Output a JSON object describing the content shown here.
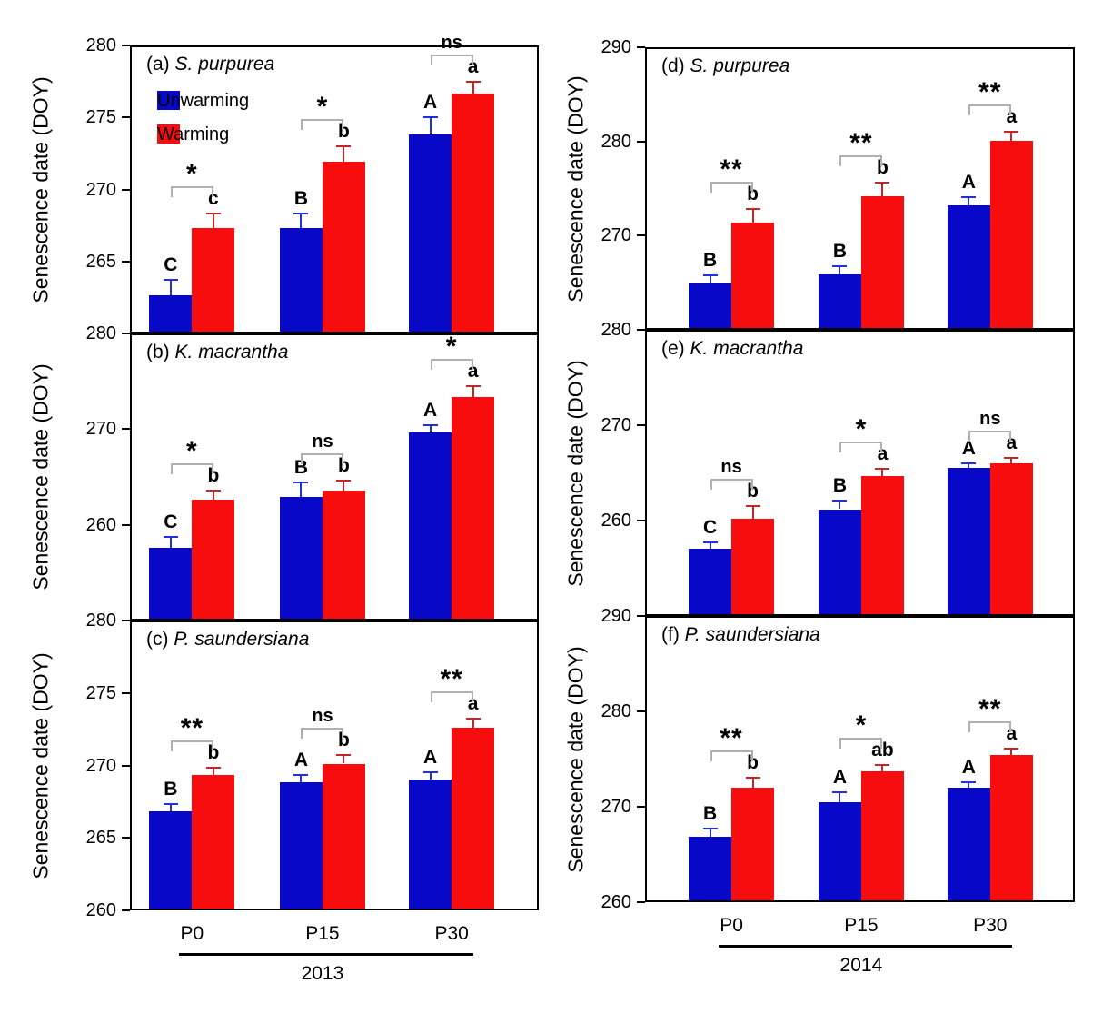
{
  "figure": {
    "background": "#ffffff",
    "ylabel": "Senescence date (DOY)",
    "legend": [
      {
        "label": "Unwarming",
        "color": "#0808C8"
      },
      {
        "label": "Warming",
        "color": "#F70D0D"
      }
    ],
    "colors": {
      "unwarming_bar": "#0808C8",
      "warming_bar": "#F70D0D",
      "unwarming_error": "#2030E0",
      "warming_error": "#C42525",
      "bracket": "#B0B0B0",
      "text": "#000000"
    },
    "x_categories": [
      "P0",
      "P15",
      "P30"
    ],
    "columns": [
      {
        "year": "2013",
        "panel_ids": [
          "a",
          "b",
          "c"
        ]
      },
      {
        "year": "2014",
        "panel_ids": [
          "d",
          "e",
          "f"
        ]
      }
    ]
  },
  "chart_data": [
    {
      "id": "a",
      "type": "bar",
      "title_prefix": "(a)",
      "species": "S. purpurea",
      "year": "2013",
      "ylabel": "Senescence date (DOY)",
      "ylim": [
        260,
        280
      ],
      "yticks": [
        {
          "v": 280,
          "label": "280"
        },
        {
          "v": 275,
          "label": "275"
        },
        {
          "v": 270,
          "label": "270"
        },
        {
          "v": 265,
          "label": "265"
        },
        {
          "v": 260,
          "label": ""
        }
      ],
      "categories": [
        "P0",
        "P15",
        "P30"
      ],
      "series": [
        {
          "name": "Unwarming",
          "values": [
            262.5,
            267.2,
            273.7
          ],
          "errors": [
            1.1,
            1.0,
            1.2
          ],
          "letters": [
            "C",
            "B",
            "A"
          ]
        },
        {
          "name": "Warming",
          "values": [
            267.2,
            271.8,
            276.5
          ],
          "errors": [
            1.0,
            1.1,
            0.85
          ],
          "letters": [
            "c",
            "b",
            "a"
          ]
        }
      ],
      "significance": [
        "*",
        "*",
        "ns"
      ],
      "show_legend": true
    },
    {
      "id": "b",
      "type": "bar",
      "title_prefix": "(b)",
      "species": "K. macrantha",
      "year": "2013",
      "ylabel": "Senescence date (DOY)",
      "ylim": [
        250,
        280
      ],
      "yticks": [
        {
          "v": 280,
          "label": "280"
        },
        {
          "v": 270,
          "label": "270"
        },
        {
          "v": 260,
          "label": "260"
        },
        {
          "v": 250,
          "label": ""
        }
      ],
      "categories": [
        "P0",
        "P15",
        "P30"
      ],
      "series": [
        {
          "name": "Unwarming",
          "values": [
            257.4,
            262.7,
            269.5
          ],
          "errors": [
            1.1,
            1.5,
            0.7
          ],
          "letters": [
            "C",
            "B",
            "A"
          ]
        },
        {
          "name": "Warming",
          "values": [
            262.4,
            263.4,
            273.2
          ],
          "errors": [
            1.0,
            1.0,
            1.1
          ],
          "letters": [
            "b",
            "b",
            "a"
          ]
        }
      ],
      "significance": [
        "*",
        "ns",
        "*"
      ],
      "show_legend": false
    },
    {
      "id": "c",
      "type": "bar",
      "title_prefix": "(c)",
      "species": "P. saundersiana",
      "year": "2013",
      "ylabel": "Senescence date (DOY)",
      "ylim": [
        260,
        280
      ],
      "yticks": [
        {
          "v": 280,
          "label": "280"
        },
        {
          "v": 275,
          "label": "275"
        },
        {
          "v": 270,
          "label": "270"
        },
        {
          "v": 265,
          "label": "265"
        },
        {
          "v": 260,
          "label": "260"
        }
      ],
      "categories": [
        "P0",
        "P15",
        "P30"
      ],
      "series": [
        {
          "name": "Unwarming",
          "values": [
            266.7,
            268.7,
            268.9
          ],
          "errors": [
            0.5,
            0.5,
            0.5
          ],
          "letters": [
            "B",
            "A",
            "A"
          ]
        },
        {
          "name": "Warming",
          "values": [
            269.2,
            270.0,
            272.5
          ],
          "errors": [
            0.5,
            0.6,
            0.6
          ],
          "letters": [
            "b",
            "b",
            "a"
          ]
        }
      ],
      "significance": [
        "**",
        "ns",
        "**"
      ],
      "show_legend": false
    },
    {
      "id": "d",
      "type": "bar",
      "title_prefix": "(d)",
      "species": "S. purpurea",
      "year": "2014",
      "ylabel": "Senescence date (DOY)",
      "ylim": [
        260,
        290
      ],
      "yticks": [
        {
          "v": 290,
          "label": "290"
        },
        {
          "v": 280,
          "label": "280"
        },
        {
          "v": 270,
          "label": "270"
        },
        {
          "v": 260,
          "label": ""
        }
      ],
      "categories": [
        "P0",
        "P15",
        "P30"
      ],
      "series": [
        {
          "name": "Unwarming",
          "values": [
            264.7,
            265.7,
            273.0
          ],
          "errors": [
            0.9,
            0.9,
            0.9
          ],
          "letters": [
            "B",
            "B",
            "A"
          ]
        },
        {
          "name": "Warming",
          "values": [
            271.2,
            274.0,
            279.9
          ],
          "errors": [
            1.4,
            1.4,
            0.9
          ],
          "letters": [
            "b",
            "b",
            "a"
          ]
        }
      ],
      "significance": [
        "**",
        "**",
        "**"
      ],
      "show_legend": false
    },
    {
      "id": "e",
      "type": "bar",
      "title_prefix": "(e)",
      "species": "K. macrantha",
      "year": "2014",
      "ylabel": "Senescence date (DOY)",
      "ylim": [
        250,
        280
      ],
      "yticks": [
        {
          "v": 280,
          "label": "280"
        },
        {
          "v": 270,
          "label": "270"
        },
        {
          "v": 260,
          "label": "260"
        },
        {
          "v": 250,
          "label": ""
        }
      ],
      "categories": [
        "P0",
        "P15",
        "P30"
      ],
      "series": [
        {
          "name": "Unwarming",
          "values": [
            256.9,
            261.0,
            265.3
          ],
          "errors": [
            0.6,
            0.9,
            0.5
          ],
          "letters": [
            "C",
            "B",
            "A"
          ]
        },
        {
          "name": "Warming",
          "values": [
            260.0,
            264.5,
            265.8
          ],
          "errors": [
            1.3,
            0.7,
            0.6
          ],
          "letters": [
            "b",
            "a",
            "a"
          ]
        }
      ],
      "significance": [
        "ns",
        "*",
        "ns"
      ],
      "show_legend": false
    },
    {
      "id": "f",
      "type": "bar",
      "title_prefix": "(f)",
      "species": "P. saundersiana",
      "year": "2014",
      "ylabel": "Senescence date (DOY)",
      "ylim": [
        260,
        290
      ],
      "yticks": [
        {
          "v": 290,
          "label": "290"
        },
        {
          "v": 280,
          "label": "280"
        },
        {
          "v": 270,
          "label": "270"
        },
        {
          "v": 260,
          "label": "260"
        }
      ],
      "categories": [
        "P0",
        "P15",
        "P30"
      ],
      "series": [
        {
          "name": "Unwarming",
          "values": [
            266.7,
            270.3,
            271.8
          ],
          "errors": [
            0.8,
            1.0,
            0.6
          ],
          "letters": [
            "B",
            "A",
            "A"
          ]
        },
        {
          "name": "Warming",
          "values": [
            271.8,
            273.5,
            275.2
          ],
          "errors": [
            1.1,
            0.7,
            0.7
          ],
          "letters": [
            "b",
            "ab",
            "a"
          ]
        }
      ],
      "significance": [
        "**",
        "*",
        "**"
      ],
      "show_legend": false
    }
  ]
}
